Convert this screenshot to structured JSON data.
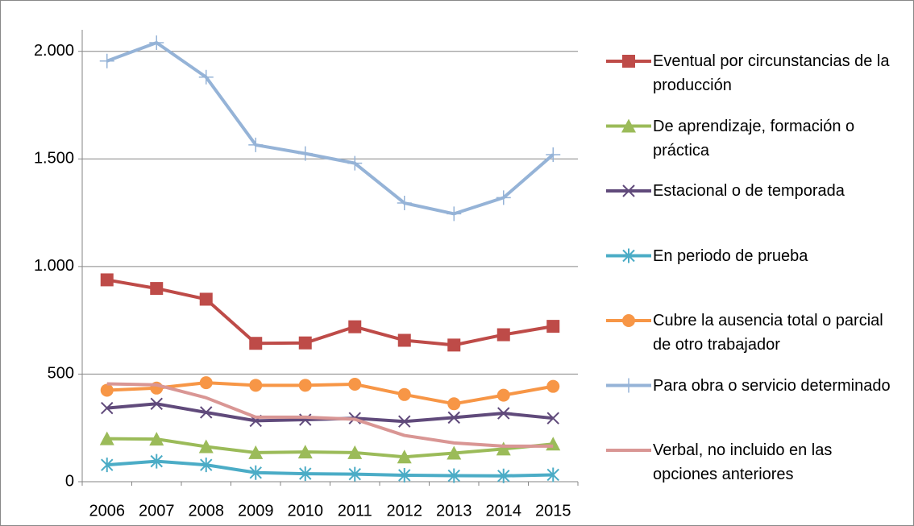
{
  "chart_data": {
    "type": "line",
    "categories": [
      "2006",
      "2007",
      "2008",
      "2009",
      "2010",
      "2011",
      "2012",
      "2013",
      "2014",
      "2015"
    ],
    "ylim": [
      0,
      2100
    ],
    "yticks": [
      0,
      500,
      {
        "value": 1000,
        "label": "1.000"
      },
      {
        "value": 1500,
        "label": "1.500"
      },
      {
        "value": 2000,
        "label": "2.000"
      }
    ],
    "grid": true,
    "legend": "right",
    "series": [
      {
        "name": "Eventual por circunstancias de la producción",
        "color": "#be4b48",
        "marker": "square",
        "values": [
          938,
          898,
          848,
          643,
          645,
          720,
          657,
          635,
          683,
          722
        ]
      },
      {
        "name": "De aprendizaje, formación o práctica",
        "color": "#9bbb59",
        "marker": "triangle",
        "values": [
          200,
          198,
          163,
          135,
          138,
          135,
          115,
          133,
          152,
          175
        ]
      },
      {
        "name": "Estacional o de temporada",
        "color": "#604a7b",
        "marker": "x",
        "values": [
          342,
          362,
          322,
          283,
          288,
          295,
          280,
          298,
          318,
          295
        ]
      },
      {
        "name": "En periodo de prueba",
        "color": "#4bacc6",
        "marker": "star",
        "values": [
          78,
          95,
          78,
          42,
          37,
          35,
          30,
          28,
          27,
          32
        ]
      },
      {
        "name": "Cubre la ausencia total o parcial de otro trabajador",
        "color": "#f79646",
        "marker": "circle",
        "values": [
          425,
          435,
          460,
          448,
          448,
          453,
          405,
          362,
          402,
          443
        ]
      },
      {
        "name": "Para obra o servicio determinado",
        "color": "#95b3d7",
        "marker": "plus",
        "values": [
          1955,
          2040,
          1880,
          1565,
          1525,
          1480,
          1295,
          1245,
          1320,
          1520
        ]
      },
      {
        "name": "Verbal, no incluido en las opciones anteriores",
        "color": "#d99694",
        "marker": "none",
        "values": [
          455,
          450,
          390,
          300,
          300,
          290,
          215,
          180,
          165,
          165
        ]
      }
    ]
  }
}
